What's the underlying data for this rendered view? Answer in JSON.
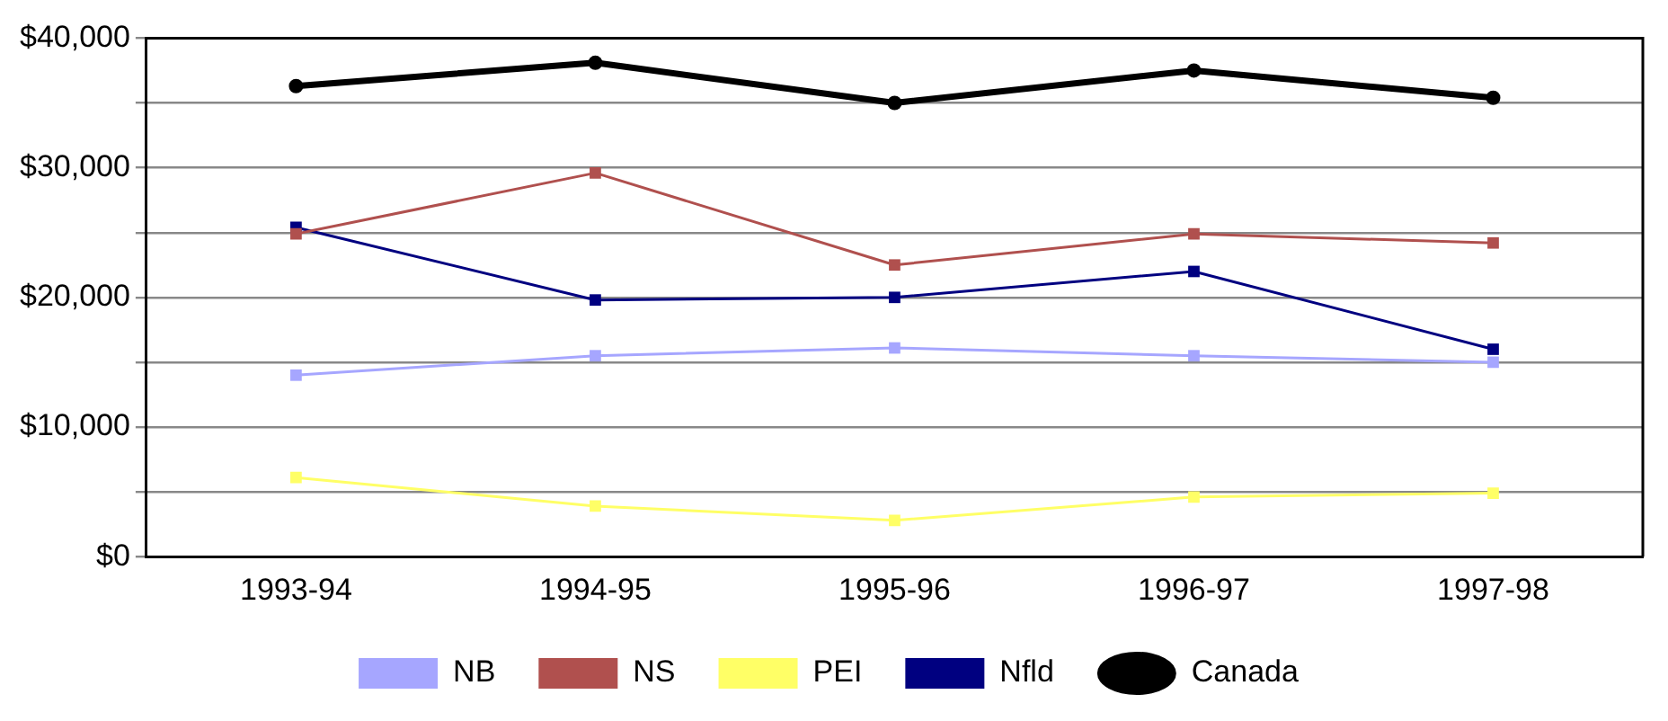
{
  "chart_data": {
    "type": "line",
    "categories": [
      "1993-94",
      "1994-95",
      "1995-96",
      "1996-97",
      "1997-98"
    ],
    "series": [
      {
        "name": "NB",
        "color": "#a6a6ff",
        "marker": "square",
        "values": [
          14000,
          15500,
          16100,
          15500,
          15000
        ]
      },
      {
        "name": "NS",
        "color": "#b0504e",
        "marker": "square",
        "values": [
          24900,
          29600,
          22500,
          24900,
          24200
        ]
      },
      {
        "name": "PEI",
        "color": "#ffff66",
        "marker": "square",
        "values": [
          6100,
          3900,
          2800,
          4600,
          4900
        ]
      },
      {
        "name": "Nfld",
        "color": "#000080",
        "marker": "square",
        "values": [
          25400,
          19800,
          20000,
          22000,
          16000
        ]
      },
      {
        "name": "Canada",
        "color": "#000000",
        "marker": "circle",
        "values": [
          36300,
          38100,
          35000,
          37500,
          35400
        ]
      }
    ],
    "ylim": [
      0,
      40000
    ],
    "yticks": [
      {
        "value": 0,
        "label": "$0"
      },
      {
        "value": 5000,
        "label": null
      },
      {
        "value": 10000,
        "label": "$10,000"
      },
      {
        "value": 15000,
        "label": null
      },
      {
        "value": 20000,
        "label": "$20,000"
      },
      {
        "value": 25000,
        "label": null
      },
      {
        "value": 30000,
        "label": "$30,000"
      },
      {
        "value": 35000,
        "label": null
      },
      {
        "value": 40000,
        "label": "$40,000"
      }
    ],
    "grid": "y",
    "legend": "bottom",
    "line_style": "solid"
  }
}
